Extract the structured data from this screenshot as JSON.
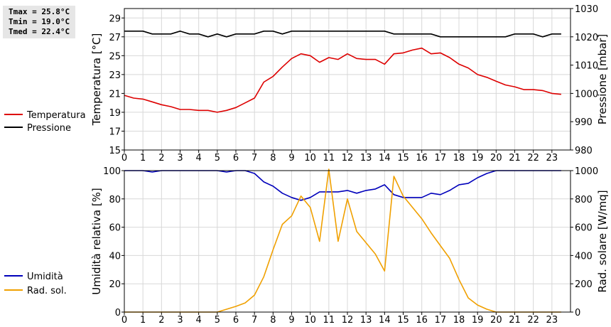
{
  "stats": {
    "tmax": "Tmax = 25.8°C",
    "tmin": "Tmin = 19.0°C",
    "tmed": "Tmed = 22.4°C"
  },
  "legend_top": [
    {
      "label": "Temperatura",
      "color": "#dd0000"
    },
    {
      "label": "Pressione",
      "color": "#000000"
    }
  ],
  "legend_bottom": [
    {
      "label": "Umidità",
      "color": "#0000bb"
    },
    {
      "label": "Rad. sol.",
      "color": "#f0a000"
    }
  ],
  "chart_data": [
    {
      "type": "line",
      "xlim": [
        0,
        24
      ],
      "x_ticks": [
        0,
        1,
        2,
        3,
        4,
        5,
        6,
        7,
        8,
        9,
        10,
        11,
        12,
        13,
        14,
        15,
        16,
        17,
        18,
        19,
        20,
        21,
        22,
        23
      ],
      "ylabel": "Temperatura [°C]",
      "ylim": [
        15,
        30
      ],
      "y_ticks": [
        15,
        17,
        19,
        21,
        23,
        25,
        27,
        29
      ],
      "ylabel_right": "Pressione [mbar]",
      "ylim_right": [
        980,
        1030
      ],
      "y_ticks_right": [
        980,
        990,
        1000,
        1010,
        1020,
        1030
      ],
      "grid": true,
      "series": [
        {
          "name": "Temperatura",
          "axis": "left",
          "color": "#dd0000",
          "x": [
            0,
            0.5,
            1,
            1.5,
            2,
            2.5,
            3,
            3.5,
            4,
            4.5,
            5,
            5.5,
            6,
            6.5,
            7,
            7.5,
            8,
            8.5,
            9,
            9.5,
            10,
            10.5,
            11,
            11.5,
            12,
            12.5,
            13,
            13.5,
            14,
            14.5,
            15,
            15.5,
            16,
            16.5,
            17,
            17.5,
            18,
            18.5,
            19,
            19.5,
            20,
            20.5,
            21,
            21.5,
            22,
            22.5,
            23,
            23.5
          ],
          "y": [
            20.8,
            20.5,
            20.4,
            20.1,
            19.8,
            19.6,
            19.3,
            19.3,
            19.2,
            19.2,
            19.0,
            19.2,
            19.5,
            20.0,
            20.5,
            22.2,
            22.8,
            23.8,
            24.7,
            25.2,
            25.0,
            24.3,
            24.8,
            24.6,
            25.2,
            24.7,
            24.6,
            24.6,
            24.1,
            25.2,
            25.3,
            25.6,
            25.8,
            25.2,
            25.3,
            24.8,
            24.1,
            23.7,
            23.0,
            22.7,
            22.3,
            21.9,
            21.7,
            21.4,
            21.4,
            21.3,
            21.0,
            20.9
          ]
        },
        {
          "name": "Pressione",
          "axis": "right",
          "color": "#000000",
          "x": [
            0,
            0.5,
            1,
            1.5,
            2,
            2.5,
            3,
            3.5,
            4,
            4.5,
            5,
            5.5,
            6,
            6.5,
            7,
            7.5,
            8,
            8.5,
            9,
            9.5,
            10,
            10.5,
            11,
            11.5,
            12,
            12.5,
            13,
            13.5,
            14,
            14.5,
            15,
            15.5,
            16,
            16.5,
            17,
            17.5,
            18,
            18.5,
            19,
            19.5,
            20,
            20.5,
            21,
            21.5,
            22,
            22.5,
            23,
            23.5
          ],
          "y": [
            1022,
            1022,
            1022,
            1021,
            1021,
            1021,
            1022,
            1021,
            1021,
            1020,
            1021,
            1020,
            1021,
            1021,
            1021,
            1022,
            1022,
            1021,
            1022,
            1022,
            1022,
            1022,
            1022,
            1022,
            1022,
            1022,
            1022,
            1022,
            1022,
            1021,
            1021,
            1021,
            1021,
            1021,
            1020,
            1020,
            1020,
            1020,
            1020,
            1020,
            1020,
            1020,
            1021,
            1021,
            1021,
            1020,
            1021,
            1021
          ]
        }
      ]
    },
    {
      "type": "line",
      "xlim": [
        0,
        24
      ],
      "x_ticks": [
        0,
        1,
        2,
        3,
        4,
        5,
        6,
        7,
        8,
        9,
        10,
        11,
        12,
        13,
        14,
        15,
        16,
        17,
        18,
        19,
        20,
        21,
        22,
        23
      ],
      "ylabel": "Umidità relativa [%]",
      "ylim": [
        0,
        100
      ],
      "y_ticks": [
        0,
        20,
        40,
        60,
        80,
        100
      ],
      "ylabel_right": "Rad. solare [W/mq]",
      "ylim_right": [
        0,
        1000
      ],
      "y_ticks_right": [
        0,
        200,
        400,
        600,
        800,
        1000
      ],
      "grid": true,
      "series": [
        {
          "name": "Umidità",
          "axis": "left",
          "color": "#0000bb",
          "x": [
            0,
            0.5,
            1,
            1.5,
            2,
            2.5,
            3,
            3.5,
            4,
            4.5,
            5,
            5.5,
            6,
            6.5,
            7,
            7.5,
            8,
            8.5,
            9,
            9.5,
            10,
            10.5,
            11,
            11.5,
            12,
            12.5,
            13,
            13.5,
            14,
            14.5,
            15,
            15.5,
            16,
            16.5,
            17,
            17.5,
            18,
            18.5,
            19,
            19.5,
            20,
            20.5,
            21,
            21.5,
            22,
            22.5,
            23,
            23.5
          ],
          "y": [
            100,
            100,
            100,
            99,
            100,
            100,
            100,
            100,
            100,
            100,
            100,
            99,
            100,
            100,
            98,
            92,
            89,
            84,
            81,
            79,
            81,
            85,
            85,
            85,
            86,
            84,
            86,
            87,
            90,
            83,
            81,
            81,
            81,
            84,
            83,
            86,
            90,
            91,
            95,
            98,
            100,
            100,
            100,
            100,
            100,
            100,
            100,
            100
          ]
        },
        {
          "name": "Rad. sol.",
          "axis": "right",
          "color": "#f0a000",
          "x": [
            0,
            0.5,
            1,
            1.5,
            2,
            2.5,
            3,
            3.5,
            4,
            4.5,
            5,
            5.5,
            6,
            6.5,
            7,
            7.5,
            8,
            8.5,
            9,
            9.5,
            10,
            10.5,
            11,
            11.5,
            12,
            12.5,
            13,
            13.5,
            14,
            14.5,
            15,
            15.5,
            16,
            16.5,
            17,
            17.5,
            18,
            18.5,
            19,
            19.5,
            20,
            20.5,
            21,
            21.5,
            22,
            22.5,
            23,
            23.5
          ],
          "y": [
            0,
            0,
            0,
            0,
            0,
            0,
            0,
            0,
            0,
            0,
            0,
            20,
            40,
            65,
            120,
            250,
            440,
            620,
            680,
            820,
            740,
            500,
            1020,
            500,
            800,
            570,
            490,
            410,
            290,
            960,
            820,
            740,
            660,
            560,
            470,
            380,
            230,
            100,
            50,
            20,
            0,
            0,
            0,
            0,
            0,
            0,
            0,
            0
          ]
        }
      ]
    }
  ]
}
